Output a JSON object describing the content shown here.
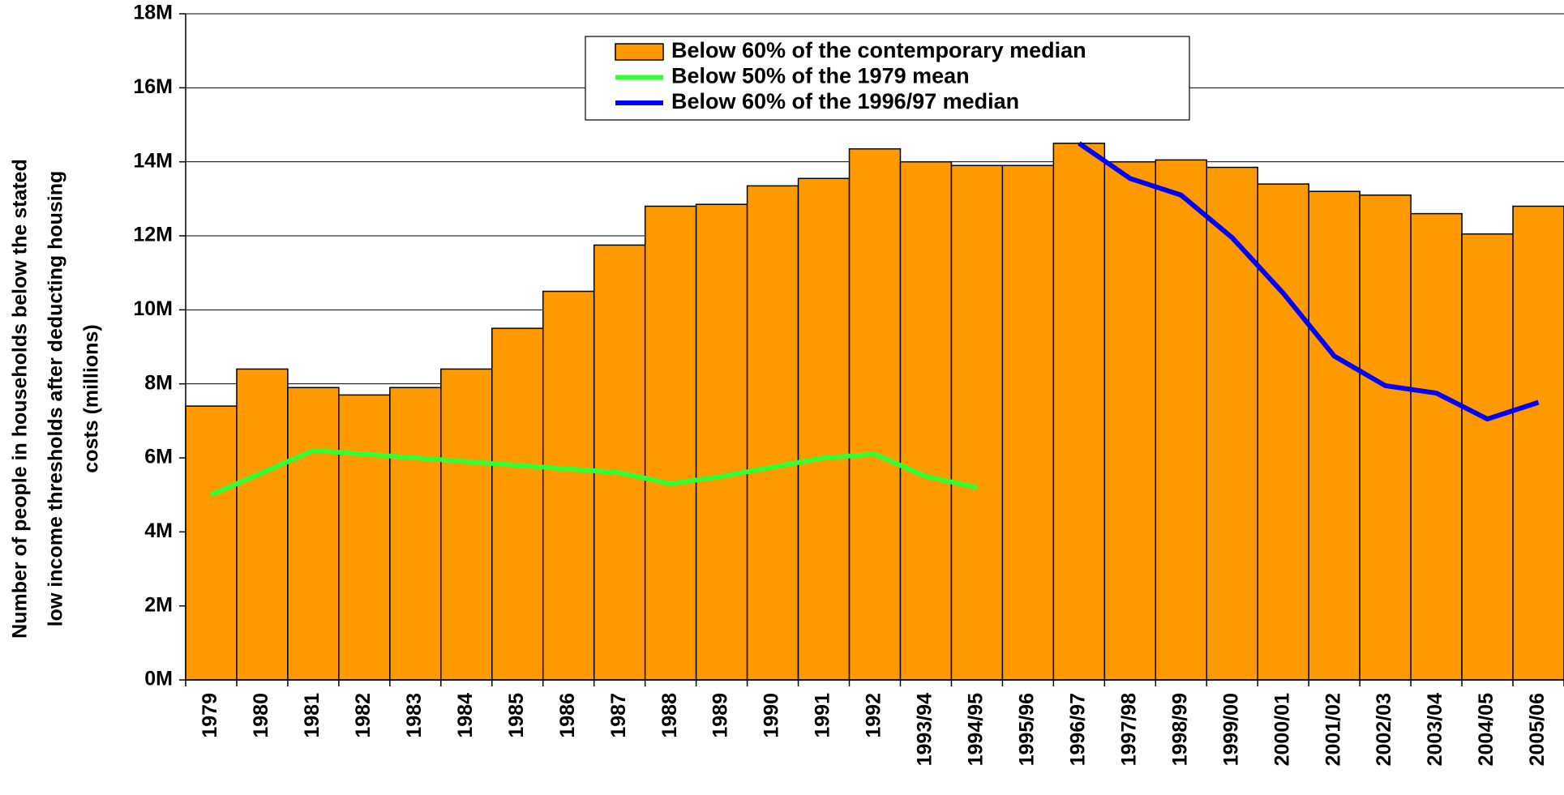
{
  "chart_data": {
    "type": "bar",
    "ylabel": [
      "Number of people in households below the stated",
      "low income thresholds after deducting housing",
      "costs (millions)"
    ],
    "categories": [
      "1979",
      "1980",
      "1981",
      "1982",
      "1983",
      "1984",
      "1985",
      "1986",
      "1987",
      "1988",
      "1989",
      "1990",
      "1991",
      "1992",
      "1993/94",
      "1994/95",
      "1995/96",
      "1996/97",
      "1997/98",
      "1998/99",
      "1999/00",
      "2000/01",
      "2001/02",
      "2002/03",
      "2003/04",
      "2004/05",
      "2005/06"
    ],
    "series": [
      {
        "name": "Below 60% of the contemporary median",
        "type": "bar",
        "color": "#ff9900",
        "values": [
          7.4,
          8.4,
          7.9,
          7.7,
          7.9,
          8.4,
          9.5,
          10.5,
          11.75,
          12.8,
          12.85,
          13.35,
          13.55,
          14.35,
          14.0,
          13.9,
          13.9,
          14.5,
          14.0,
          14.05,
          13.85,
          13.4,
          13.2,
          13.1,
          12.6,
          12.05,
          12.8
        ]
      },
      {
        "name": "Below 50% of the 1979 mean",
        "type": "line",
        "color": "#33ff33",
        "values": [
          5.0,
          5.6,
          6.2,
          6.1,
          6.0,
          5.9,
          5.8,
          5.7,
          5.6,
          5.3,
          5.5,
          5.75,
          6.0,
          6.1,
          5.5,
          5.2,
          null,
          null,
          null,
          null,
          null,
          null,
          null,
          null,
          null,
          null,
          null
        ]
      },
      {
        "name": "Below 60% of the 1996/97 median",
        "type": "line",
        "color": "#0000ff",
        "values": [
          null,
          null,
          null,
          null,
          null,
          null,
          null,
          null,
          null,
          null,
          null,
          null,
          null,
          null,
          null,
          null,
          null,
          14.5,
          13.55,
          13.1,
          11.95,
          10.45,
          8.75,
          7.95,
          7.75,
          7.05,
          7.5
        ]
      }
    ],
    "ylim": [
      0,
      18
    ],
    "yticks": [
      {
        "value": 0,
        "label": "0M"
      },
      {
        "value": 2,
        "label": "2M"
      },
      {
        "value": 4,
        "label": "4M"
      },
      {
        "value": 6,
        "label": "6M"
      },
      {
        "value": 8,
        "label": "8M"
      },
      {
        "value": 10,
        "label": "10M"
      },
      {
        "value": 12,
        "label": "12M"
      },
      {
        "value": 14,
        "label": "14M"
      },
      {
        "value": 16,
        "label": "16M"
      },
      {
        "value": 18,
        "label": "18M"
      }
    ],
    "grid": true,
    "legend": "top"
  }
}
